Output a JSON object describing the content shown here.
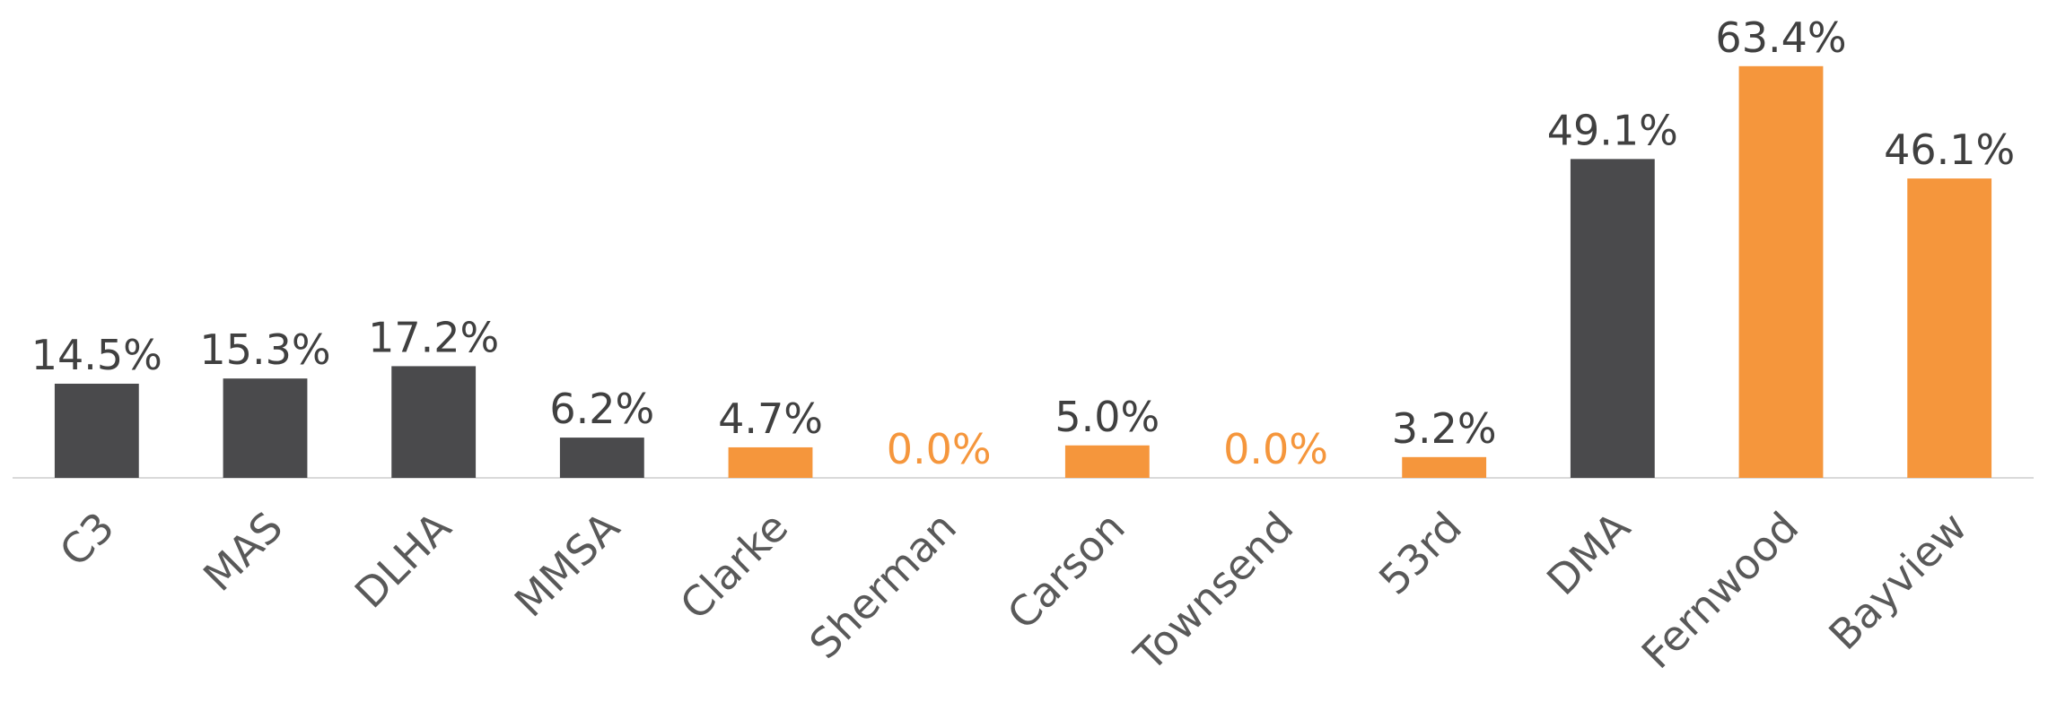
{
  "chart_data": {
    "type": "bar",
    "categories": [
      "C3",
      "MAS",
      "DLHA",
      "MMSA",
      "Clarke",
      "Sherman",
      "Carson",
      "Townsend",
      "53rd",
      "DMA",
      "Fernwood",
      "Bayview"
    ],
    "values": [
      14.5,
      15.3,
      17.2,
      6.2,
      4.7,
      0,
      5.0,
      0,
      3.2,
      49.1,
      63.4,
      46.1
    ],
    "value_labels": [
      "14.5%",
      "15.3%",
      "17.2%",
      "6.2%",
      "4.7%",
      "0.0%",
      "5.0%",
      "0.0%",
      "3.2%",
      "49.1%",
      "63.4%",
      "46.1%"
    ],
    "colors": [
      "#4a4a4c",
      "#4a4a4c",
      "#4a4a4c",
      "#4a4a4c",
      "#f5963c",
      "#f5963c",
      "#f5963c",
      "#f5963c",
      "#f5963c",
      "#4a4a4c",
      "#f5963c",
      "#f5963c"
    ],
    "value_label_colors": [
      "#404040",
      "#404040",
      "#404040",
      "#404040",
      "#404040",
      "#f5963c",
      "#404040",
      "#f5963c",
      "#404040",
      "#404040",
      "#404040",
      "#404040"
    ],
    "ylim": [
      0,
      70
    ],
    "grid": false
  }
}
